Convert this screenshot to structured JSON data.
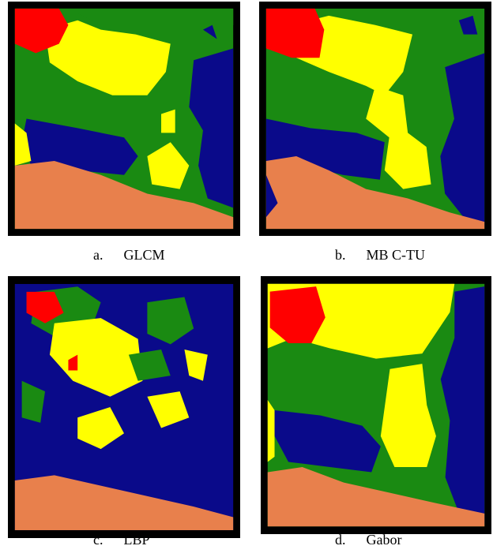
{
  "figure": {
    "panels": [
      {
        "letter": "a.",
        "name": "GLCM"
      },
      {
        "letter": "b.",
        "name": "MB C-TU"
      },
      {
        "letter": "c.",
        "name": "LBP"
      },
      {
        "letter": "d.",
        "name": "Gabor"
      }
    ]
  }
}
